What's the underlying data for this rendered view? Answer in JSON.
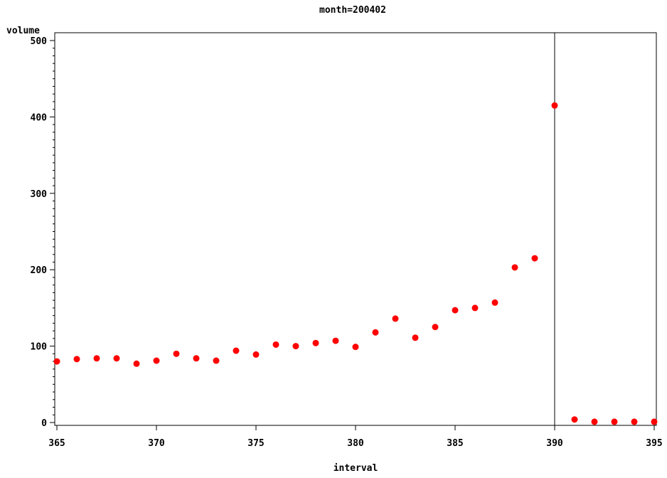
{
  "chart_data": {
    "type": "scatter",
    "title": "month=200402",
    "xlabel": "interval",
    "ylabel": "volume",
    "xlim": [
      365,
      395
    ],
    "ylim": [
      0,
      500
    ],
    "x_ticks": [
      "365",
      "370",
      "375",
      "380",
      "385",
      "390",
      "395"
    ],
    "y_ticks": [
      "0",
      "100",
      "200",
      "300",
      "400",
      "500"
    ],
    "reference_line_x": 390,
    "grid": false,
    "marker_color": "#ff0000",
    "series": [
      {
        "points": [
          {
            "x": 365,
            "y": 80
          },
          {
            "x": 366,
            "y": 83
          },
          {
            "x": 367,
            "y": 84
          },
          {
            "x": 368,
            "y": 84
          },
          {
            "x": 369,
            "y": 77
          },
          {
            "x": 370,
            "y": 81
          },
          {
            "x": 371,
            "y": 90
          },
          {
            "x": 372,
            "y": 84
          },
          {
            "x": 373,
            "y": 81
          },
          {
            "x": 374,
            "y": 94
          },
          {
            "x": 375,
            "y": 89
          },
          {
            "x": 376,
            "y": 102
          },
          {
            "x": 377,
            "y": 100
          },
          {
            "x": 378,
            "y": 104
          },
          {
            "x": 379,
            "y": 107
          },
          {
            "x": 380,
            "y": 99
          },
          {
            "x": 381,
            "y": 118
          },
          {
            "x": 382,
            "y": 136
          },
          {
            "x": 383,
            "y": 111
          },
          {
            "x": 384,
            "y": 125
          },
          {
            "x": 385,
            "y": 147
          },
          {
            "x": 386,
            "y": 150
          },
          {
            "x": 387,
            "y": 157
          },
          {
            "x": 388,
            "y": 203
          },
          {
            "x": 389,
            "y": 215
          },
          {
            "x": 390,
            "y": 415
          },
          {
            "x": 391,
            "y": 4
          },
          {
            "x": 392,
            "y": 1
          },
          {
            "x": 393,
            "y": 1
          },
          {
            "x": 394,
            "y": 1
          },
          {
            "x": 395,
            "y": 1
          }
        ]
      }
    ]
  }
}
